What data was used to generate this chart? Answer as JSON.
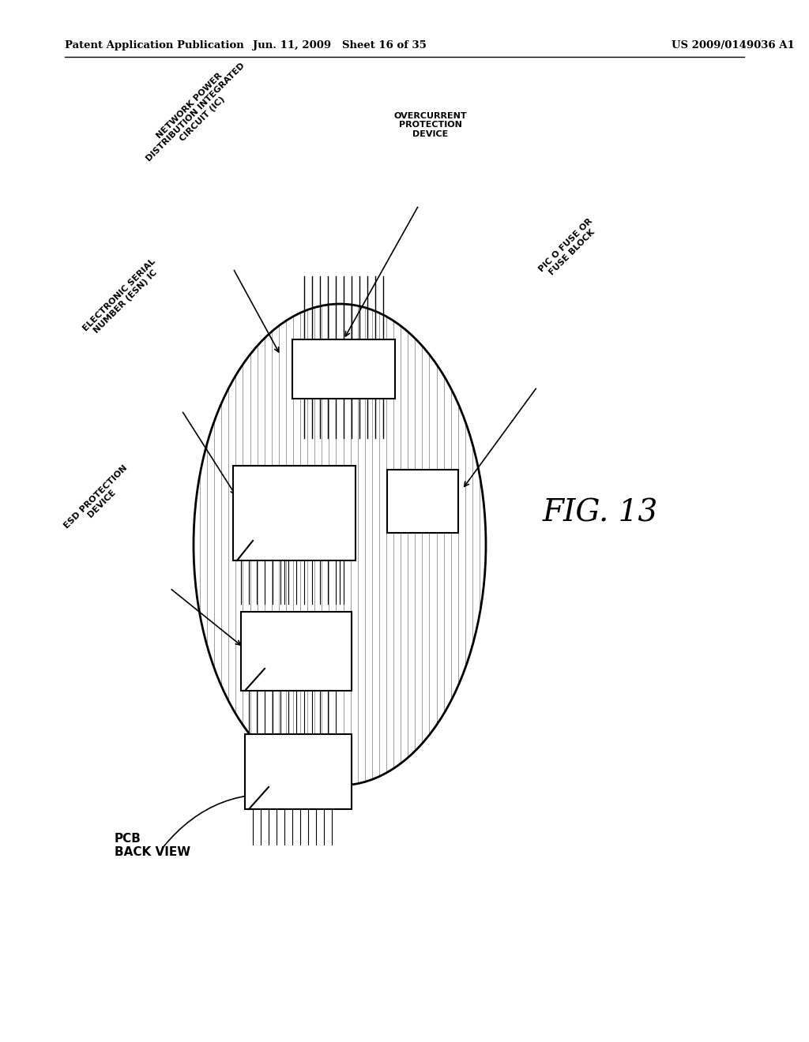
{
  "bg_color": "#ffffff",
  "header_left": "Patent Application Publication",
  "header_center": "Jun. 11, 2009   Sheet 16 of 35",
  "header_right": "US 2009/0149036 A1",
  "fig_label": "FIG. 13",
  "pcb_label": "PCB\nBACK VIEW",
  "labels": {
    "overcurrent": "OVERCURRENT\nPROTECTION\nDEVICE",
    "network_power": "NETWORK POWER\nDISTRIBUTION INTEGRATED\nCIRCUIT (IC)",
    "esn": "ELECTRONIC SERIAL\nNUMBER (ESN) IC",
    "esd": "ESD PROTECTION\nDEVICE",
    "picofuse": "PIC O FUSE OR\nFUSE BLOCK"
  },
  "line_color": "#000000",
  "text_color": "#000000",
  "font_size_header": 9.5,
  "font_size_label": 8.0,
  "font_size_fig": 28
}
